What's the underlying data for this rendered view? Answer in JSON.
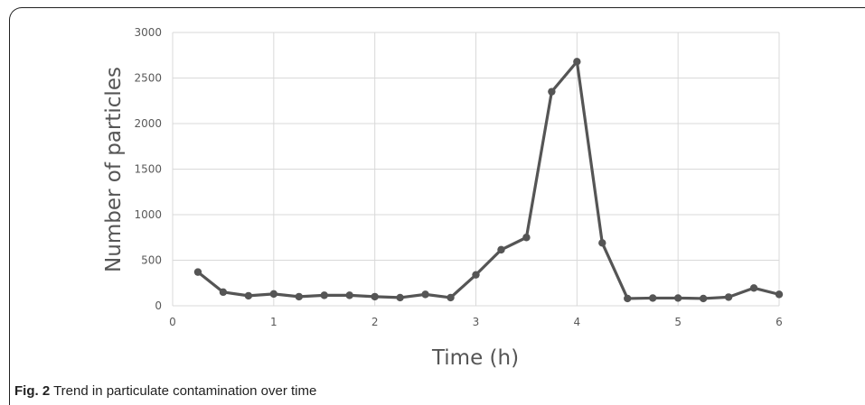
{
  "chart_data": {
    "type": "line",
    "title": "",
    "xlabel": "Time (h)",
    "ylabel": "Number of particles",
    "xlim": [
      0,
      6
    ],
    "ylim": [
      0,
      3000
    ],
    "x_ticks": [
      "0",
      "1",
      "2",
      "3",
      "4",
      "5",
      "6"
    ],
    "y_ticks": [
      "0",
      "500",
      "1000",
      "1500",
      "2000",
      "2500",
      "3000"
    ],
    "grid": true,
    "line_color": "#555555",
    "series": [
      {
        "x": [
          0.25,
          0.5,
          0.75,
          1.0,
          1.25,
          1.5,
          1.75,
          2.0,
          2.25,
          2.5,
          2.75,
          3.0,
          3.25,
          3.5,
          3.75,
          4.0,
          4.25,
          4.5,
          4.75,
          5.0,
          5.25,
          5.5,
          5.75,
          6.0
        ],
        "values": [
          370,
          150,
          110,
          130,
          100,
          115,
          115,
          100,
          90,
          125,
          90,
          340,
          615,
          750,
          2350,
          2680,
          690,
          80,
          85,
          85,
          80,
          95,
          195,
          125
        ]
      }
    ]
  },
  "caption": {
    "label": "Fig. 2",
    "text": " Trend in particulate contamination over time"
  }
}
